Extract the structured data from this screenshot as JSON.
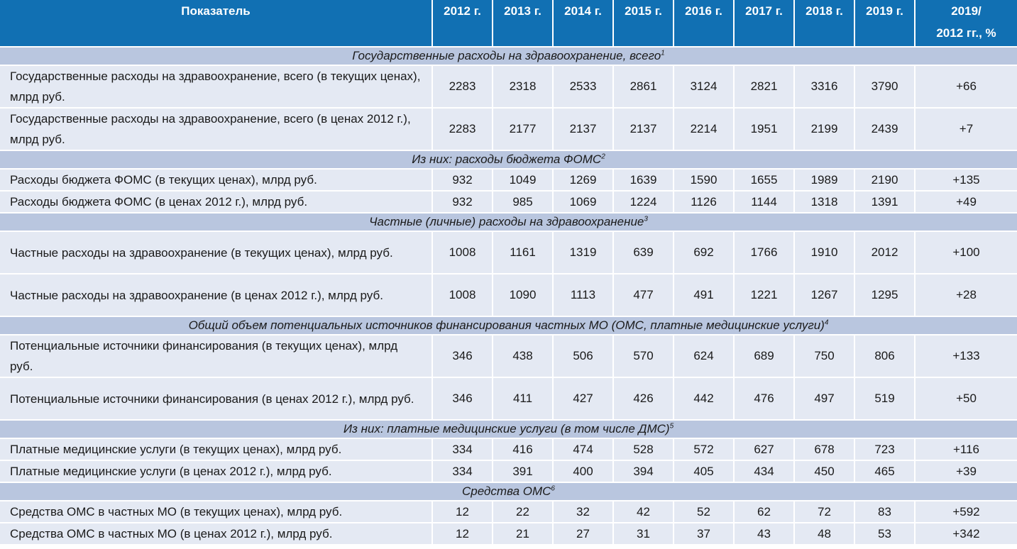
{
  "header": {
    "label": "Показатель",
    "years": [
      "2012 г.",
      "2013 г.",
      "2014 г.",
      "2015 г.",
      "2016 г.",
      "2017 г.",
      "2018 г.",
      "2019 г."
    ],
    "ratio_line1": "2019/",
    "ratio_line2": "2012 гг., %"
  },
  "sections": [
    {
      "title": "Государственные расходы на здравоохранение, всего",
      "note": "1",
      "rows": [
        {
          "label": "Государственные расходы на здравоохранение, всего (в текущих ценах), млрд руб.",
          "values": [
            "2283",
            "2318",
            "2533",
            "2861",
            "3124",
            "2821",
            "3316",
            "3790"
          ],
          "ratio": "+66"
        },
        {
          "label": "Государственные расходы на здравоохранение, всего (в ценах 2012 г.), млрд руб.",
          "values": [
            "2283",
            "2177",
            "2137",
            "2137",
            "2214",
            "1951",
            "2199",
            "2439"
          ],
          "ratio": "+7"
        }
      ]
    },
    {
      "title": "Из них: расходы бюджета ФОМС",
      "note": "2",
      "rows": [
        {
          "label": "Расходы бюджета ФОМС (в текущих ценах), млрд руб.",
          "values": [
            "932",
            "1049",
            "1269",
            "1639",
            "1590",
            "1655",
            "1989",
            "2190"
          ],
          "ratio": "+135"
        },
        {
          "label": "Расходы бюджета ФОМС (в ценах 2012 г.), млрд руб.",
          "values": [
            "932",
            "985",
            "1069",
            "1224",
            "1126",
            "1144",
            "1318",
            "1391"
          ],
          "ratio": "+49"
        }
      ]
    },
    {
      "title": "Частные (личные) расходы на здравоохранение",
      "note": "3",
      "rows": [
        {
          "label": "Частные расходы на здравоохранение (в текущих ценах), млрд руб.",
          "values": [
            "1008",
            "1161",
            "1319",
            "639",
            "692",
            "1766",
            "1910",
            "2012"
          ],
          "ratio": "+100"
        },
        {
          "label": "Частные расходы на здравоохранение (в ценах 2012 г.), млрд руб.",
          "values": [
            "1008",
            "1090",
            "1113",
            "477",
            "491",
            "1221",
            "1267",
            "1295"
          ],
          "ratio": "+28"
        }
      ]
    },
    {
      "title": "Общий объем потенциальных источников финансирования частных МО (ОМС, платные медицинские услуги)",
      "note": "4",
      "rows": [
        {
          "label": "Потенциальные источники финансирования (в текущих ценах), млрд руб.",
          "values": [
            "346",
            "438",
            "506",
            "570",
            "624",
            "689",
            "750",
            "806"
          ],
          "ratio": "+133"
        },
        {
          "label": "Потенциальные источники финансирования (в ценах 2012 г.), млрд руб.",
          "values": [
            "346",
            "411",
            "427",
            "426",
            "442",
            "476",
            "497",
            "519"
          ],
          "ratio": "+50"
        }
      ]
    },
    {
      "title": "Из них: платные медицинские услуги (в том числе ДМС)",
      "note": "5",
      "rows": [
        {
          "label": "Платные медицинские услуги (в текущих ценах), млрд руб.",
          "values": [
            "334",
            "416",
            "474",
            "528",
            "572",
            "627",
            "678",
            "723"
          ],
          "ratio": "+116"
        },
        {
          "label": "Платные медицинские услуги (в ценах 2012 г.), млрд руб.",
          "values": [
            "334",
            "391",
            "400",
            "394",
            "405",
            "434",
            "450",
            "465"
          ],
          "ratio": "+39"
        }
      ]
    },
    {
      "title": "Средства ОМС",
      "note": "6",
      "rows": [
        {
          "label": "Средства ОМС в частных МО (в текущих ценах), млрд руб.",
          "values": [
            "12",
            "22",
            "32",
            "42",
            "52",
            "62",
            "72",
            "83"
          ],
          "ratio": "+592"
        },
        {
          "label": "Средства ОМС в частных МО (в ценах 2012 г.), млрд руб.",
          "values": [
            "12",
            "21",
            "27",
            "31",
            "37",
            "43",
            "48",
            "53"
          ],
          "ratio": "+342"
        }
      ]
    }
  ]
}
